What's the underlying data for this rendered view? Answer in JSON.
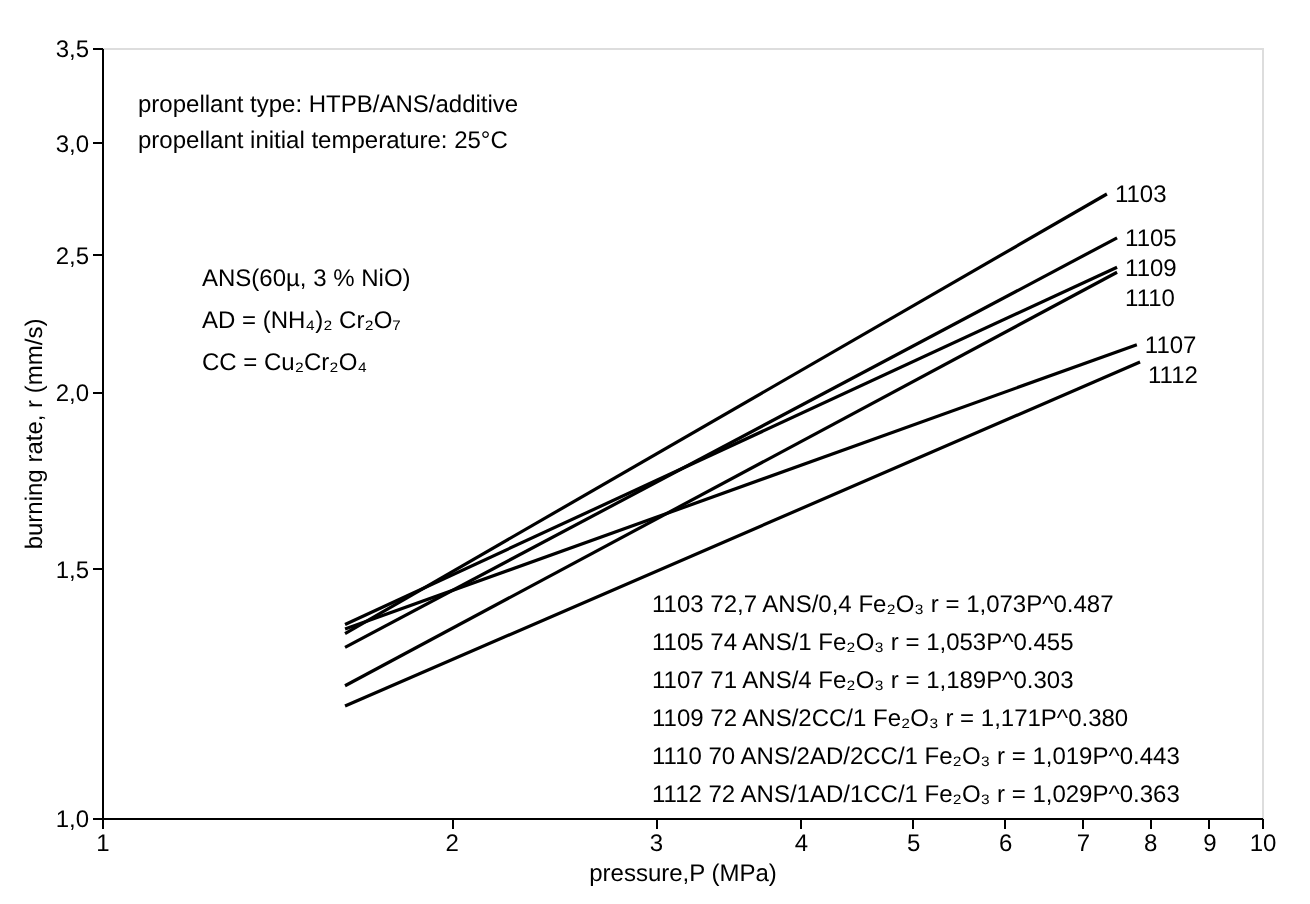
{
  "chart_data": {
    "type": "line",
    "xlabel": "pressure,P (MPa)",
    "ylabel": "burning rate, r (mm/s)",
    "log": "xy",
    "grid": false,
    "legend": false,
    "marker": "none",
    "line_style": "solid",
    "xlim": [
      1,
      10
    ],
    "xticks": [
      1,
      2,
      3,
      4,
      5,
      6,
      7,
      8,
      9,
      10
    ],
    "ylim": [
      1.0,
      3.5
    ],
    "yticks": [
      {
        "value": 1.0,
        "label": "1,0"
      },
      {
        "value": 1.5,
        "label": "1,5"
      },
      {
        "value": 2.0,
        "label": "2,0"
      },
      {
        "value": 2.5,
        "label": "2,5"
      },
      {
        "value": 3.0,
        "label": "3,0"
      },
      {
        "value": 3.5,
        "label": "3,5"
      }
    ],
    "series": [
      {
        "name": "1103",
        "color": "#000000",
        "x": [
          1.62,
          7.35
        ],
        "values": [
          1.35,
          2.76
        ]
      },
      {
        "name": "1105",
        "color": "#000000",
        "x": [
          1.62,
          7.5
        ],
        "values": [
          1.32,
          2.57
        ]
      },
      {
        "name": "1109",
        "color": "#000000",
        "x": [
          1.62,
          7.5
        ],
        "values": [
          1.37,
          2.45
        ]
      },
      {
        "name": "1110",
        "color": "#000000",
        "x": [
          1.62,
          7.5
        ],
        "values": [
          1.24,
          2.43
        ]
      },
      {
        "name": "1107",
        "color": "#000000",
        "x": [
          1.62,
          7.8
        ],
        "values": [
          1.36,
          2.16
        ]
      },
      {
        "name": "1112",
        "color": "#000000",
        "x": [
          1.62,
          7.85
        ],
        "values": [
          1.2,
          2.1
        ]
      }
    ],
    "annotations": [
      "propellant type: HTPB/ANS/additive",
      "propellant initial temperature: 25°C",
      "ANS(60µ, 3 % NiO)",
      "AD = (NH₄)₂ Cr₂O₇",
      "CC = Cu₂Cr₂O₄",
      "1103  72,7 ANS/0,4 Fe₂O₃ r = 1,073P^0.487",
      "1105  74  ANS/1  Fe₂O₃ r = 1,053P^0.455",
      "1107  71  ANS/4  Fe₂O₃ r = 1,189P^0.303",
      "1109  72  ANS/2CC/1 Fe₂O₃ r = 1,171P^0.380",
      "1110  70 ANS/2AD/2CC/1 Fe₂O₃ r = 1,019P^0.443",
      "1112  72 ANS/1AD/1CC/1 Fe₂O₃ r = 1,029P^0.363"
    ]
  }
}
